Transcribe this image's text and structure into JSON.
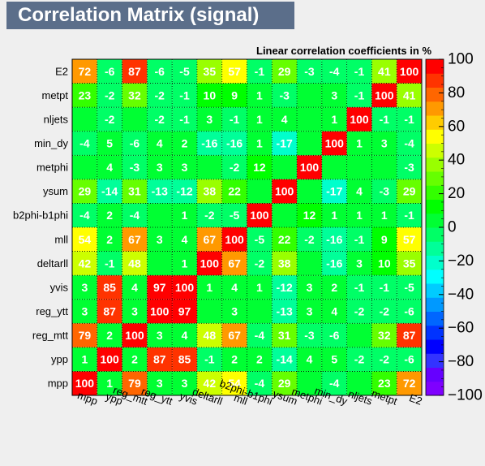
{
  "title": "Correlation Matrix (signal)",
  "chart_data": {
    "type": "heatmap",
    "title": "Correlation Matrix (signal)",
    "subtitle": "Linear correlation coefficients in %",
    "x_labels": [
      "mpp",
      "ypp",
      "reg_mtt",
      "reg_ytt",
      "yvis",
      "deltarll",
      "mll",
      "b2phi-b1phi",
      "ysum",
      "metphi",
      "min_dy",
      "nljets",
      "metpt",
      "E2"
    ],
    "y_labels": [
      "mpp",
      "ypp",
      "reg_mtt",
      "reg_ytt",
      "yvis",
      "deltarll",
      "mll",
      "b2phi-b1phi",
      "ysum",
      "metphi",
      "min_dy",
      "nljets",
      "metpt",
      "E2"
    ],
    "values": [
      [
        100,
        1,
        79,
        3,
        3,
        42,
        54,
        -4,
        29,
        null,
        -4,
        null,
        23,
        72
      ],
      [
        1,
        100,
        2,
        87,
        85,
        -1,
        2,
        2,
        -14,
        4,
        5,
        -2,
        -2,
        -6
      ],
      [
        79,
        2,
        100,
        3,
        4,
        48,
        67,
        -4,
        31,
        -3,
        -6,
        null,
        32,
        87
      ],
      [
        3,
        87,
        3,
        100,
        97,
        null,
        3,
        null,
        -13,
        3,
        4,
        -2,
        -2,
        -6
      ],
      [
        3,
        85,
        4,
        97,
        100,
        1,
        4,
        1,
        -12,
        3,
        2,
        -1,
        -1,
        -5
      ],
      [
        42,
        -1,
        48,
        null,
        1,
        100,
        67,
        -2,
        38,
        null,
        -16,
        3,
        10,
        35
      ],
      [
        54,
        2,
        67,
        3,
        4,
        67,
        100,
        -5,
        22,
        -2,
        -16,
        -1,
        9,
        57
      ],
      [
        -4,
        2,
        -4,
        null,
        1,
        -2,
        -5,
        100,
        null,
        12,
        1,
        1,
        1,
        -1
      ],
      [
        29,
        -14,
        31,
        -13,
        -12,
        38,
        22,
        null,
        100,
        null,
        -17,
        4,
        -3,
        29
      ],
      [
        null,
        4,
        -3,
        3,
        3,
        null,
        -2,
        12,
        null,
        100,
        null,
        null,
        null,
        -3
      ],
      [
        -4,
        5,
        -6,
        4,
        2,
        -16,
        -16,
        1,
        -17,
        null,
        100,
        1,
        3,
        -4
      ],
      [
        null,
        -2,
        null,
        -2,
        -1,
        3,
        -1,
        1,
        4,
        null,
        1,
        100,
        -1,
        -1
      ],
      [
        23,
        -2,
        32,
        -2,
        -1,
        10,
        9,
        1,
        -3,
        null,
        3,
        -1,
        100,
        41
      ],
      [
        72,
        -6,
        87,
        -6,
        -5,
        35,
        57,
        -1,
        29,
        -3,
        -4,
        -1,
        41,
        100
      ]
    ],
    "zlim": [
      -100,
      100
    ],
    "z_ticks": [
      "100",
      "80",
      "60",
      "40",
      "20",
      "0",
      "−20",
      "−40",
      "−60",
      "−80",
      "−100"
    ],
    "palette": [
      "#7f00ff",
      "#6600ff",
      "#3333ff",
      "#0000ff",
      "#0033ff",
      "#0066ff",
      "#0099ff",
      "#00ccff",
      "#00ffff",
      "#00ffcc",
      "#00ff99",
      "#00ff66",
      "#00ff33",
      "#00ff00",
      "#33ff00",
      "#66ff00",
      "#99ff00",
      "#ccff00",
      "#ffff00",
      "#ffcc00",
      "#ff9900",
      "#ff6600",
      "#ff3300",
      "#ff0000"
    ],
    "grid": true,
    "legend": "right"
  }
}
